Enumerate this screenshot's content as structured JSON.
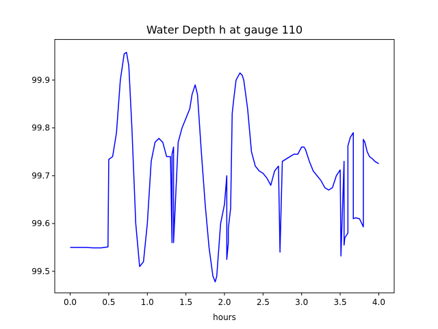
{
  "chart_data": {
    "type": "line",
    "title": "Water Depth h at gauge 110",
    "xlabel": "hours",
    "ylabel": "",
    "xlim": [
      -0.2,
      4.2
    ],
    "ylim": [
      99.455,
      99.985
    ],
    "xticks": [
      0.0,
      0.5,
      1.0,
      1.5,
      2.0,
      2.5,
      3.0,
      3.5,
      4.0
    ],
    "xtick_labels": [
      "0.0",
      "0.5",
      "1.0",
      "1.5",
      "2.0",
      "2.5",
      "3.0",
      "3.5",
      "4.0"
    ],
    "yticks": [
      99.5,
      99.6,
      99.7,
      99.8,
      99.9
    ],
    "ytick_labels": [
      "99.5",
      "99.6",
      "99.7",
      "99.8",
      "99.9"
    ],
    "grid": false,
    "legend": "none",
    "series": [
      {
        "color": "#0000ff",
        "x": [
          0.0,
          0.1,
          0.2,
          0.3,
          0.4,
          0.49,
          0.5,
          0.5,
          0.55,
          0.6,
          0.65,
          0.7,
          0.73,
          0.76,
          0.8,
          0.85,
          0.9,
          0.95,
          1.0,
          1.05,
          1.1,
          1.15,
          1.2,
          1.25,
          1.3,
          1.32,
          1.32,
          1.34,
          1.34,
          1.4,
          1.45,
          1.5,
          1.55,
          1.58,
          1.62,
          1.65,
          1.7,
          1.75,
          1.8,
          1.85,
          1.88,
          1.9,
          1.95,
          2.0,
          2.03,
          2.03,
          2.05,
          2.05,
          2.08,
          2.1,
          2.1,
          2.12,
          2.15,
          2.2,
          2.23,
          2.25,
          2.3,
          2.35,
          2.4,
          2.45,
          2.5,
          2.55,
          2.6,
          2.65,
          2.7,
          2.72,
          2.72,
          2.75,
          2.75,
          2.8,
          2.85,
          2.9,
          2.95,
          3.0,
          3.03,
          3.05,
          3.1,
          3.15,
          3.2,
          3.25,
          3.3,
          3.35,
          3.4,
          3.45,
          3.5,
          3.51,
          3.51,
          3.55,
          3.55,
          3.56,
          3.6,
          3.6,
          3.63,
          3.67,
          3.67,
          3.7,
          3.75,
          3.8,
          3.8,
          3.82,
          3.85,
          3.88,
          3.92,
          3.95,
          4.0
        ],
        "y": [
          99.55,
          99.55,
          99.55,
          99.549,
          99.549,
          99.551,
          99.734,
          99.734,
          99.74,
          99.79,
          99.9,
          99.955,
          99.958,
          99.93,
          99.8,
          99.6,
          99.51,
          99.52,
          99.6,
          99.73,
          99.77,
          99.778,
          99.77,
          99.74,
          99.74,
          99.56,
          99.745,
          99.76,
          99.56,
          99.77,
          99.8,
          99.82,
          99.84,
          99.87,
          99.89,
          99.87,
          99.75,
          99.64,
          99.55,
          99.49,
          99.478,
          99.49,
          99.6,
          99.64,
          99.7,
          99.525,
          99.56,
          99.59,
          99.632,
          99.83,
          99.83,
          99.86,
          99.9,
          99.915,
          99.91,
          99.9,
          99.84,
          99.75,
          99.72,
          99.71,
          99.705,
          99.695,
          99.68,
          99.71,
          99.72,
          99.54,
          99.545,
          99.73,
          99.73,
          99.735,
          99.74,
          99.745,
          99.745,
          99.76,
          99.76,
          99.755,
          99.73,
          99.71,
          99.7,
          99.69,
          99.675,
          99.67,
          99.675,
          99.7,
          99.712,
          99.532,
          99.534,
          99.73,
          99.555,
          99.57,
          99.58,
          99.762,
          99.78,
          99.79,
          99.61,
          99.612,
          99.61,
          99.593,
          99.776,
          99.77,
          99.75,
          99.74,
          99.735,
          99.73,
          99.725
        ]
      }
    ]
  }
}
